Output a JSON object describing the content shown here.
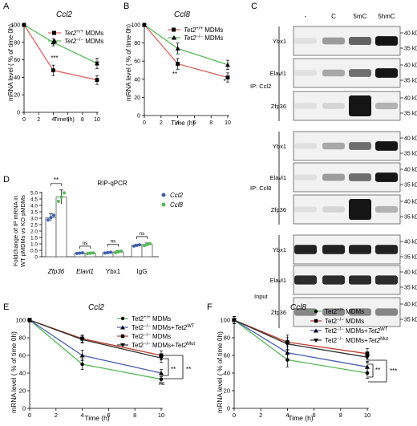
{
  "figure": {
    "panels": {
      "A": {
        "letter": "A",
        "title": "Ccl2",
        "legend": [
          {
            "gene": "Tet2",
            "sup": "+/+",
            "rest": " MDMs"
          },
          {
            "gene": "Tet2",
            "sup": "−/−",
            "rest": " MDMs"
          }
        ],
        "ylabel": "mRNA level ( % of time 0h)",
        "xlabel": "Time (h)",
        "yticks": [
          "0",
          "20",
          "40",
          "60",
          "80",
          "100"
        ],
        "xticks": [
          "0",
          "2",
          "4",
          "6",
          "8",
          "10"
        ],
        "sig": [
          "***",
          "**"
        ]
      },
      "B": {
        "letter": "B",
        "title": "Ccl8",
        "legend": [
          {
            "gene": "Tet2",
            "sup": "+/+",
            "rest": " MDMs"
          },
          {
            "gene": "Tet2",
            "sup": "−/−",
            "rest": " MDMs"
          }
        ],
        "ylabel": "mRNA level ( % of time 0h)",
        "xlabel": "Time (h)",
        "yticks": [
          "0",
          "20",
          "40",
          "60",
          "80",
          "100"
        ],
        "xticks": [
          "0",
          "2",
          "4",
          "6",
          "8",
          "10"
        ],
        "sig": [
          "**",
          "*"
        ]
      },
      "C": {
        "letter": "C",
        "lanes": [
          "-",
          "C",
          "5mC",
          "5hmC"
        ],
        "groups": [
          {
            "label": "IP: Ccl2",
            "rows": [
              "Ybx1",
              "Elavl1",
              "Zfp36"
            ]
          },
          {
            "label": "IP: Ccl8",
            "rows": [
              "Ybx1",
              "Elavl1",
              "Zfp36"
            ]
          },
          {
            "label": "Input",
            "rows": [
              "Ybx1",
              "Elavl1",
              "Zfp36"
            ]
          }
        ],
        "kd_high": "40 kD",
        "kd_low": "35 kD"
      },
      "D": {
        "letter": "D",
        "title": "RIP-qPCR",
        "ylabel_1": "Foldchange of IP mRNA  in",
        "ylabel_2": "WT pMDMs vs KO pMDMs",
        "yticks": [
          "0",
          "0.5",
          "1.0",
          "1.5",
          "2.0",
          "2.5",
          "3.0",
          "3.5",
          "4.0",
          "4.5",
          "5.0"
        ],
        "categories": [
          "Zfp36",
          "Elavl1",
          "Ybx1",
          "IgG"
        ],
        "legend": [
          "Ccl2",
          "Ccl8"
        ],
        "sig": [
          "**",
          "ns",
          "ns",
          "ns"
        ]
      },
      "E": {
        "letter": "E",
        "title": "Ccl2",
        "legend": [
          {
            "pre": "Tet2",
            "sup": "+/+",
            "post": " MDMs",
            "gene": "",
            "gsup": ""
          },
          {
            "pre": "Tet2",
            "sup": "−/−",
            "post": " MDMs+",
            "gene": "Tet2",
            "gsup": "WT"
          },
          {
            "pre": "Tet2",
            "sup": "−/−",
            "post": " MDMs",
            "gene": "",
            "gsup": ""
          },
          {
            "pre": "Tet2",
            "sup": "−/−",
            "post": " MDMs+",
            "gene": "Tet2",
            "gsup": "Mut"
          }
        ],
        "ylabel": "mRNA level ( % of time 0h)",
        "xlabel": "Time (h)",
        "yticks": [
          "0",
          "20",
          "40",
          "60",
          "80",
          "100"
        ],
        "xticks": [
          "0",
          "2",
          "4",
          "6",
          "8",
          "10"
        ],
        "sig": [
          "**",
          "**",
          "ns"
        ]
      },
      "F": {
        "letter": "F",
        "title": "Ccl8",
        "legend": [
          {
            "pre": "Tet2",
            "sup": "+/+",
            "post": " MDMs",
            "gene": "",
            "gsup": ""
          },
          {
            "pre": "Tet2",
            "sup": "−/−",
            "post": " MDMs",
            "gene": "",
            "gsup": ""
          },
          {
            "pre": "Tet2",
            "sup": "−/−",
            "post": " MDMs+",
            "gene": "Tet2",
            "gsup": "WT"
          },
          {
            "pre": "Tet2",
            "sup": "−/−",
            "post": " MDMs+",
            "gene": "Tet2",
            "gsup": "Mut"
          }
        ],
        "ylabel": "mRNA level ( % of time 0h)",
        "xlabel": "Time (h)",
        "yticks": [
          "0",
          "20",
          "40",
          "60",
          "80",
          "100"
        ],
        "xticks": [
          "0",
          "2",
          "4",
          "6",
          "8",
          "10"
        ],
        "sig": [
          "**",
          "***"
        ]
      }
    }
  },
  "chart_data": [
    {
      "panel": "A",
      "type": "line",
      "title": "Ccl2",
      "xlabel": "Time (h)",
      "ylabel": "mRNA level ( % of time 0h)",
      "xlim": [
        0,
        10
      ],
      "ylim": [
        0,
        100
      ],
      "x": [
        0,
        4,
        10
      ],
      "series": [
        {
          "name": "Tet2+/+ MDMs",
          "color": "#e06060",
          "values": [
            100,
            48,
            37
          ],
          "err": [
            0,
            6,
            5
          ]
        },
        {
          "name": "Tet2−/− MDMs",
          "color": "#57b857",
          "values": [
            100,
            80,
            56
          ],
          "err": [
            0,
            4,
            6
          ]
        }
      ]
    },
    {
      "panel": "B",
      "type": "line",
      "title": "Ccl8",
      "xlabel": "Time (h)",
      "ylabel": "mRNA level ( % of time 0h)",
      "xlim": [
        0,
        10
      ],
      "ylim": [
        0,
        100
      ],
      "x": [
        0,
        4,
        10
      ],
      "series": [
        {
          "name": "Tet2+/+ MDMs",
          "color": "#e06060",
          "values": [
            100,
            57,
            42
          ],
          "err": [
            0,
            6,
            5
          ]
        },
        {
          "name": "Tet2−/− MDMs",
          "color": "#57b857",
          "values": [
            100,
            74,
            56
          ],
          "err": [
            0,
            6,
            5
          ]
        }
      ]
    },
    {
      "panel": "D",
      "type": "bar",
      "title": "RIP-qPCR",
      "ylabel": "Foldchange of IP mRNA in WT pMDMs vs KO pMDMs",
      "ylim": [
        0,
        5.0
      ],
      "categories": [
        "Zfp36",
        "Elavl1",
        "Ybx1",
        "IgG"
      ],
      "series": [
        {
          "name": "Ccl2",
          "color": "#3a5fb0",
          "values": [
            3.05,
            0.28,
            0.32,
            0.88
          ],
          "err": [
            0.3,
            0.04,
            0.05,
            0.08
          ]
        },
        {
          "name": "Ccl8",
          "color": "#52b852",
          "values": [
            4.65,
            0.27,
            0.38,
            0.95
          ],
          "err": [
            0.55,
            0.05,
            0.1,
            0.12
          ]
        }
      ]
    },
    {
      "panel": "E",
      "type": "line",
      "title": "Ccl2",
      "xlabel": "Time (h)",
      "ylabel": "mRNA level ( % of time 0h)",
      "xlim": [
        0,
        10
      ],
      "ylim": [
        0,
        100
      ],
      "x": [
        0,
        4,
        10
      ],
      "series": [
        {
          "name": "Tet2+/+ MDMs",
          "color": "#57b857",
          "values": [
            100,
            50,
            33
          ],
          "err": [
            2,
            6,
            5
          ]
        },
        {
          "name": "Tet2−/− MDMs+Tet2WT",
          "color": "#4a5fb5",
          "values": [
            100,
            60,
            40
          ],
          "err": [
            2,
            6,
            4
          ]
        },
        {
          "name": "Tet2−/− MDMs",
          "color": "#c0392b",
          "values": [
            100,
            79,
            60
          ],
          "err": [
            2,
            4,
            5
          ]
        },
        {
          "name": "Tet2−/− MDMs+Tet2Mut",
          "color": "#333333",
          "values": [
            100,
            78,
            57
          ],
          "err": [
            2,
            4,
            5
          ]
        }
      ]
    },
    {
      "panel": "F",
      "type": "line",
      "title": "Ccl8",
      "xlabel": "Time (h)",
      "ylabel": "mRNA level ( % of time 0h)",
      "xlim": [
        0,
        10
      ],
      "ylim": [
        0,
        100
      ],
      "x": [
        0,
        4,
        10
      ],
      "series": [
        {
          "name": "Tet2+/+ MDMs",
          "color": "#57b857",
          "values": [
            100,
            55,
            40
          ],
          "err": [
            4,
            8,
            6
          ]
        },
        {
          "name": "Tet2−/− MDMs",
          "color": "#c0392b",
          "values": [
            100,
            75,
            62
          ],
          "err": [
            4,
            8,
            6
          ]
        },
        {
          "name": "Tet2−/− MDMs+Tet2WT",
          "color": "#4a5fb5",
          "values": [
            100,
            63,
            47
          ],
          "err": [
            4,
            7,
            6
          ]
        },
        {
          "name": "Tet2−/− MDMs+Tet2Mut",
          "color": "#333333",
          "values": [
            100,
            73,
            58
          ],
          "err": [
            4,
            7,
            6
          ]
        }
      ]
    }
  ]
}
